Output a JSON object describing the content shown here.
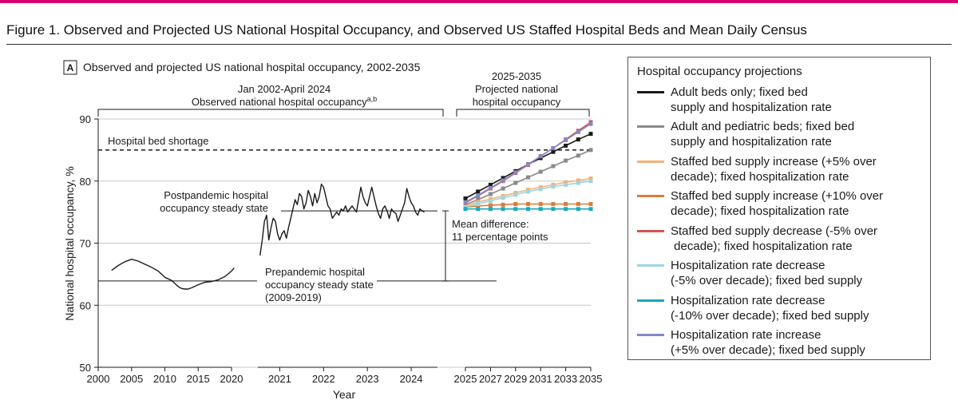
{
  "colors": {
    "accent": "#d6006f",
    "observed": "#1a1a1a",
    "grid": "#c8c8c8"
  },
  "figure": {
    "title": "Figure 1. Observed and Projected US National Hospital Occupancy, and Observed US Staffed Hospital Beds and Mean Daily Census"
  },
  "chart_data": {
    "type": "line",
    "panel_label": "A",
    "title": "Observed and projected US national hospital occupancy, 2002-2035",
    "ylabel": "National hospital occupancy, %",
    "xlabel": "Year",
    "ylim": [
      50,
      90
    ],
    "yticks": [
      "50",
      "60",
      "70",
      "80",
      "90"
    ],
    "grid": true,
    "segments": [
      {
        "name": "early",
        "range": [
          2000,
          2020
        ],
        "ticks": [
          "2000",
          "2005",
          "2010",
          "2015",
          "2020"
        ]
      },
      {
        "name": "observed",
        "range": [
          2020.5,
          2024.6
        ],
        "ticks": [
          "2021",
          "2022",
          "2023",
          "2024"
        ]
      },
      {
        "name": "projection",
        "range": [
          2025,
          2035
        ],
        "ticks": [
          "2025",
          "2027",
          "2029",
          "2031",
          "2033",
          "2035"
        ]
      }
    ],
    "observed_bracket": {
      "line1": "Jan 2002-April 2024",
      "line2": "Observed national hospital occupancy",
      "superscript": "a,b"
    },
    "projected_bracket": {
      "line1": "2025-2035",
      "line2": "Projected national",
      "line3": "hospital occupancy"
    },
    "shortage": {
      "label": "Hospital bed shortage",
      "value": 85
    },
    "postpandemic": {
      "line1": "Postpandemic hospital",
      "line2": "occupancy steady state",
      "value": 75.2
    },
    "prepandemic": {
      "line1": "Prepandemic hospital",
      "line2": "occupancy steady state",
      "line3": "(2009-2019)",
      "value": 63.9
    },
    "mean_difference": {
      "line1": "Mean difference:",
      "line2": "11 percentage points"
    },
    "observed_series": {
      "name": "Observed national hospital occupancy",
      "early_x": [
        2002,
        2003,
        2004,
        2005,
        2006,
        2007,
        2008,
        2009,
        2010,
        2011,
        2012,
        2012.5,
        2013,
        2013.5,
        2014,
        2015,
        2016,
        2017,
        2018,
        2019,
        2020,
        2020.4
      ],
      "early_y": [
        65.6,
        66.4,
        67.0,
        67.4,
        67.1,
        66.6,
        66.1,
        65.5,
        64.5,
        64.0,
        63.0,
        62.7,
        62.6,
        62.6,
        62.8,
        63.3,
        63.7,
        63.8,
        64.1,
        64.6,
        65.5,
        66.0
      ],
      "late_x": [
        2020.55,
        2020.6,
        2020.65,
        2020.7,
        2020.75,
        2020.8,
        2020.85,
        2020.9,
        2020.95,
        2021.0,
        2021.05,
        2021.1,
        2021.15,
        2021.2,
        2021.25,
        2021.3,
        2021.35,
        2021.4,
        2021.45,
        2021.5,
        2021.55,
        2021.6,
        2021.65,
        2021.7,
        2021.75,
        2021.8,
        2021.85,
        2021.9,
        2021.95,
        2022.0,
        2022.05,
        2022.1,
        2022.15,
        2022.2,
        2022.25,
        2022.3,
        2022.35,
        2022.4,
        2022.45,
        2022.5,
        2022.55,
        2022.6,
        2022.65,
        2022.7,
        2022.75,
        2022.8,
        2022.85,
        2022.9,
        2022.95,
        2023.0,
        2023.05,
        2023.1,
        2023.15,
        2023.2,
        2023.25,
        2023.3,
        2023.35,
        2023.4,
        2023.45,
        2023.5,
        2023.55,
        2023.6,
        2023.65,
        2023.7,
        2023.75,
        2023.8,
        2023.85,
        2023.9,
        2023.95,
        2024.0,
        2024.05,
        2024.1,
        2024.15,
        2024.2,
        2024.25,
        2024.3
      ],
      "late_y": [
        68.0,
        70.5,
        73.5,
        74.5,
        70.5,
        72.5,
        74.0,
        73.5,
        71.5,
        70.5,
        71.5,
        72.0,
        70.8,
        72.5,
        74.0,
        75.5,
        77.0,
        76.2,
        78.0,
        77.5,
        75.5,
        76.5,
        78.5,
        77.5,
        76.0,
        78.0,
        76.5,
        77.5,
        79.5,
        79.0,
        77.5,
        76.0,
        75.5,
        74.0,
        74.5,
        75.0,
        74.5,
        75.5,
        75.2,
        76.0,
        75.0,
        75.5,
        76.0,
        75.5,
        75.0,
        77.0,
        79.0,
        77.5,
        76.5,
        76.0,
        77.5,
        79.0,
        77.5,
        76.0,
        74.8,
        74.0,
        75.5,
        76.0,
        75.2,
        74.0,
        75.5,
        75.0,
        74.8,
        73.5,
        74.5,
        75.5,
        76.5,
        78.8,
        77.5,
        76.5,
        76.0,
        75.0,
        74.5,
        75.5,
        75.2,
        75.0
      ]
    },
    "projection_x": [
      2025,
      2026,
      2027,
      2028,
      2029,
      2030,
      2031,
      2032,
      2033,
      2034,
      2035
    ],
    "series": [
      {
        "name": "Adult beds only",
        "color": "#1a1a1a",
        "values": [
          77.2,
          78.3,
          79.4,
          80.5,
          81.6,
          82.7,
          83.7,
          84.7,
          85.7,
          86.7,
          87.6
        ]
      },
      {
        "name": "Adult and pediatric beds",
        "color": "#8a8a8a",
        "values": [
          76.2,
          77.0,
          77.9,
          78.8,
          79.7,
          80.6,
          81.5,
          82.4,
          83.3,
          84.1,
          85.0
        ]
      },
      {
        "name": "Staffed bed supply increase (+5%)",
        "color": "#f2b277",
        "values": [
          76.0,
          76.6,
          77.1,
          77.6,
          78.1,
          78.6,
          79.0,
          79.4,
          79.8,
          80.1,
          80.4
        ]
      },
      {
        "name": "Staffed bed supply increase (+10%)",
        "color": "#e07b39",
        "values": [
          75.8,
          76.0,
          76.1,
          76.2,
          76.3,
          76.3,
          76.3,
          76.3,
          76.3,
          76.3,
          76.3
        ]
      },
      {
        "name": "Staffed bed supply decrease (-5%)",
        "color": "#d9534f",
        "values": [
          76.5,
          77.6,
          78.8,
          80.0,
          81.3,
          82.6,
          84.0,
          85.3,
          86.7,
          88.1,
          89.5
        ]
      },
      {
        "name": "Hospitalization rate decrease (-5%)",
        "color": "#9ed5e0",
        "values": [
          75.8,
          76.3,
          76.8,
          77.3,
          77.8,
          78.3,
          78.7,
          79.1,
          79.4,
          79.7,
          80.0
        ]
      },
      {
        "name": "Hospitalization rate decrease (-10%)",
        "color": "#19a9c2",
        "values": [
          75.5,
          75.5,
          75.5,
          75.5,
          75.5,
          75.5,
          75.5,
          75.5,
          75.5,
          75.5,
          75.5
        ]
      },
      {
        "name": "Hospitalization rate increase (+5%)",
        "color": "#8389c4",
        "values": [
          76.6,
          77.7,
          78.9,
          80.1,
          81.4,
          82.7,
          84.0,
          85.3,
          86.6,
          87.9,
          89.2
        ]
      }
    ]
  },
  "legend": {
    "title": "Hospital occupancy projections",
    "items": [
      {
        "label": "Adult beds only; fixed bed\nsupply and hospitalization rate",
        "color": "#1a1a1a"
      },
      {
        "label": "Adult and pediatric beds; fixed bed\nsupply and hospitalization rate",
        "color": "#8a8a8a"
      },
      {
        "label": "Staffed bed supply increase (+5% over\ndecade); fixed hospitalization rate",
        "color": "#f2b277"
      },
      {
        "label": "Staffed bed supply increase (+10% over\ndecade); fixed hospitalization rate",
        "color": "#e07b39"
      },
      {
        "label": "Staffed bed supply decrease (-5% over\n decade); fixed hospitalization rate",
        "color": "#d9534f"
      },
      {
        "label": "Hospitalization rate decrease\n(-5% over decade); fixed bed supply",
        "color": "#9ed5e0"
      },
      {
        "label": "Hospitalization rate decrease\n(-10% over decade); fixed bed supply",
        "color": "#19a9c2"
      },
      {
        "label": "Hospitalization rate increase\n(+5% over decade); fixed bed supply",
        "color": "#8389c4"
      }
    ]
  }
}
